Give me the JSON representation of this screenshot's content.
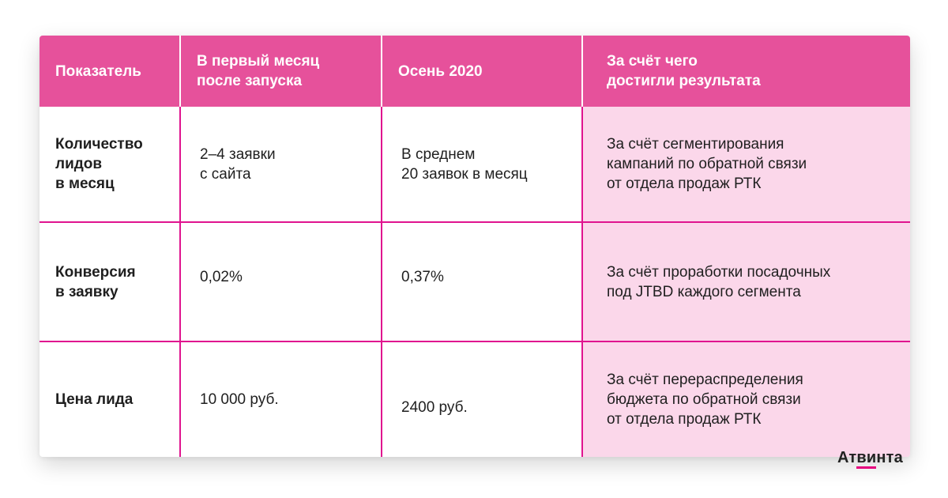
{
  "table": {
    "headers": [
      "Показатель",
      "В первый месяц\nпосле запуска",
      "Осень 2020",
      "За счёт чего\nдостигли результата"
    ],
    "rows": [
      {
        "indicator": "Количество\nлидов\nв месяц",
        "first_month": "2–4 заявки\nс сайта",
        "autumn_2020": "В среднем\n20 заявок в месяц",
        "reason": "За счёт сегментирования\nкампаний по обратной связи\nот отдела продаж РТК"
      },
      {
        "indicator": "Конверсия\nв заявку",
        "first_month": "0,02%",
        "autumn_2020": "0,37%",
        "reason": "За счёт проработки посадочных\nпод JTBD каждого сегмента"
      },
      {
        "indicator": "Цена лида",
        "first_month": "10 000 руб.",
        "autumn_2020": "2400 руб.",
        "reason": "За счёт перераспределения\nбюджета по обратной связи\nот отдела продаж РТК"
      }
    ]
  },
  "brand": {
    "logo_part1": "Ат",
    "logo_accent": "ви",
    "logo_part2": "нта"
  },
  "colors": {
    "header_bg": "#e6519b",
    "grid_lines": "#e0148f",
    "reason_column_bg": "#fbd7ea",
    "logo_accent": "#e6007e"
  }
}
